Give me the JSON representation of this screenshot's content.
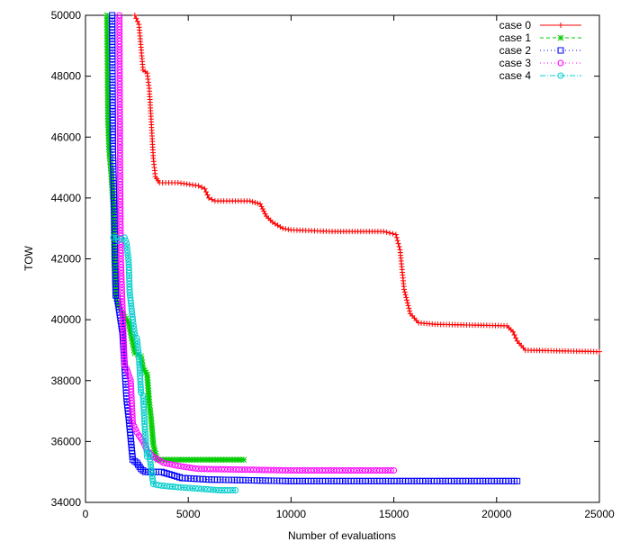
{
  "chart_data": {
    "type": "line",
    "title": "",
    "xlabel": "Number of evaluations",
    "ylabel": "TOW",
    "xlim": [
      0,
      25000
    ],
    "ylim": [
      34000,
      50000
    ],
    "xticks": [
      0,
      5000,
      10000,
      15000,
      20000,
      25000
    ],
    "yticks": [
      34000,
      36000,
      38000,
      40000,
      42000,
      44000,
      46000,
      48000,
      50000
    ],
    "grid": false,
    "legend_position": "top-right",
    "series": [
      {
        "name": "case 0",
        "color": "#ff0000",
        "dash": "",
        "marker": "plus",
        "points": [
          [
            2400,
            50000
          ],
          [
            2600,
            49700
          ],
          [
            2800,
            48200
          ],
          [
            3000,
            48100
          ],
          [
            3100,
            47600
          ],
          [
            3200,
            46500
          ],
          [
            3300,
            45300
          ],
          [
            3400,
            44700
          ],
          [
            3600,
            44500
          ],
          [
            4500,
            44500
          ],
          [
            5500,
            44400
          ],
          [
            5800,
            44300
          ],
          [
            6000,
            44000
          ],
          [
            6300,
            43900
          ],
          [
            8000,
            43900
          ],
          [
            8500,
            43800
          ],
          [
            8800,
            43400
          ],
          [
            9100,
            43200
          ],
          [
            9600,
            43000
          ],
          [
            10000,
            42950
          ],
          [
            12000,
            42900
          ],
          [
            14500,
            42900
          ],
          [
            15100,
            42800
          ],
          [
            15300,
            42300
          ],
          [
            15500,
            41000
          ],
          [
            15800,
            40200
          ],
          [
            16200,
            39900
          ],
          [
            17000,
            39850
          ],
          [
            20500,
            39800
          ],
          [
            20800,
            39600
          ],
          [
            21000,
            39300
          ],
          [
            21400,
            39000
          ],
          [
            25000,
            38950
          ]
        ]
      },
      {
        "name": "case 1",
        "color": "#00cc00",
        "dash": "4,3",
        "marker": "star",
        "points": [
          [
            1050,
            50000
          ],
          [
            1100,
            46500
          ],
          [
            1150,
            45600
          ],
          [
            1250,
            44800
          ],
          [
            1350,
            43700
          ],
          [
            1400,
            41800
          ],
          [
            1500,
            40700
          ],
          [
            1650,
            40400
          ],
          [
            1900,
            40100
          ],
          [
            2100,
            39900
          ],
          [
            2250,
            39400
          ],
          [
            2400,
            38900
          ],
          [
            2700,
            38800
          ],
          [
            2800,
            38400
          ],
          [
            3000,
            38200
          ],
          [
            3100,
            37300
          ],
          [
            3200,
            36700
          ],
          [
            3300,
            35900
          ],
          [
            3400,
            35600
          ],
          [
            3500,
            35400
          ],
          [
            7700,
            35400
          ]
        ]
      },
      {
        "name": "case 2",
        "color": "#0000ff",
        "dash": "1,3",
        "marker": "square",
        "points": [
          [
            1300,
            50000
          ],
          [
            1330,
            45600
          ],
          [
            1380,
            44200
          ],
          [
            1420,
            42700
          ],
          [
            1470,
            40800
          ],
          [
            1550,
            40700
          ],
          [
            1800,
            39600
          ],
          [
            2000,
            37400
          ],
          [
            2100,
            36800
          ],
          [
            2200,
            36100
          ],
          [
            2300,
            35400
          ],
          [
            2500,
            35300
          ],
          [
            2700,
            35100
          ],
          [
            2900,
            35000
          ],
          [
            3700,
            35000
          ],
          [
            4200,
            34900
          ],
          [
            4700,
            34800
          ],
          [
            6000,
            34750
          ],
          [
            10000,
            34700
          ],
          [
            21000,
            34700
          ]
        ]
      },
      {
        "name": "case 3",
        "color": "#ff00ff",
        "dash": "1,3",
        "marker": "circle",
        "points": [
          [
            1650,
            50000
          ],
          [
            1680,
            45000
          ],
          [
            1720,
            42000
          ],
          [
            1800,
            40400
          ],
          [
            1900,
            38500
          ],
          [
            2000,
            38400
          ],
          [
            2200,
            38000
          ],
          [
            2300,
            36600
          ],
          [
            2500,
            36300
          ],
          [
            2600,
            36200
          ],
          [
            2800,
            36000
          ],
          [
            3000,
            35700
          ],
          [
            3300,
            35500
          ],
          [
            3800,
            35300
          ],
          [
            4500,
            35200
          ],
          [
            5500,
            35100
          ],
          [
            10000,
            35050
          ],
          [
            15000,
            35050
          ]
        ]
      },
      {
        "name": "case 4",
        "color": "#00cccc",
        "dash": "6,2,1,2",
        "marker": "circle",
        "points": [
          [
            1350,
            42700
          ],
          [
            1500,
            42700
          ],
          [
            1600,
            42600
          ],
          [
            1900,
            42700
          ],
          [
            2000,
            42500
          ],
          [
            2100,
            41900
          ],
          [
            2150,
            40900
          ],
          [
            2300,
            40000
          ],
          [
            2400,
            39500
          ],
          [
            2500,
            39400
          ],
          [
            2600,
            38800
          ],
          [
            2700,
            37600
          ],
          [
            2800,
            37500
          ],
          [
            2900,
            36300
          ],
          [
            3000,
            35500
          ],
          [
            3100,
            35600
          ],
          [
            3300,
            34600
          ],
          [
            3700,
            34550
          ],
          [
            4500,
            34500
          ],
          [
            5500,
            34450
          ],
          [
            6500,
            34400
          ],
          [
            7300,
            34400
          ]
        ]
      }
    ]
  }
}
